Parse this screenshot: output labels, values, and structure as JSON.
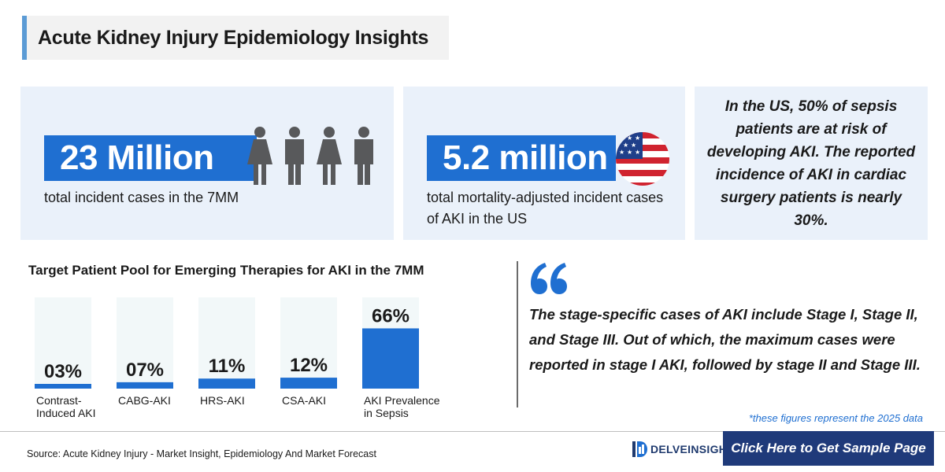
{
  "header": {
    "title": "Acute Kidney Injury Epidemiology Insights"
  },
  "stats": [
    {
      "value": "23 Million",
      "description": "total incident cases in the 7MM",
      "icon": "people-icon"
    },
    {
      "value": "5.2 million",
      "description": "total mortality-adjusted incident cases of AKI in the US",
      "icon": "us-flag-icon"
    }
  ],
  "sepsis_note": "In the US, 50% of sepsis patients are at risk of developing AKI. The reported incidence of AKI in cardiac surgery patients is nearly 30%.",
  "chart_data": {
    "type": "bar",
    "title": "Target Patient Pool for Emerging Therapies for AKI in the 7MM",
    "categories": [
      "Contrast-Induced AKI",
      "CABG-AKI",
      "HRS-AKI",
      "CSA-AKI",
      "AKI Prevalence in Sepsis"
    ],
    "values": [
      3,
      7,
      11,
      12,
      66
    ],
    "value_labels": [
      "03%",
      "07%",
      "11%",
      "12%",
      "66%"
    ],
    "ylim": [
      0,
      100
    ],
    "colors": {
      "bar": "#1f6fd1",
      "track": "#f2f8f9"
    }
  },
  "quote": {
    "icon": "quote-icon",
    "text": "The stage-specific cases of AKI include Stage I, Stage II, and Stage III. Out of which, the maximum cases were reported in stage I AKI, followed by stage II and Stage III."
  },
  "footnote": "*these figures represent the 2025 data",
  "footer": {
    "source": "Source: Acute Kidney Injury - Market Insight, Epidemiology And Market Forecast",
    "logo_text": "DELVEINSIGHT",
    "cta_label": "Click Here to Get Sample Page"
  },
  "colors": {
    "accent": "#1f6fd1",
    "card_bg": "#eaf1fa",
    "cta_bg": "#1f3a7a",
    "title_bar": "#5b9bd5",
    "icon_gray": "#58595b"
  }
}
